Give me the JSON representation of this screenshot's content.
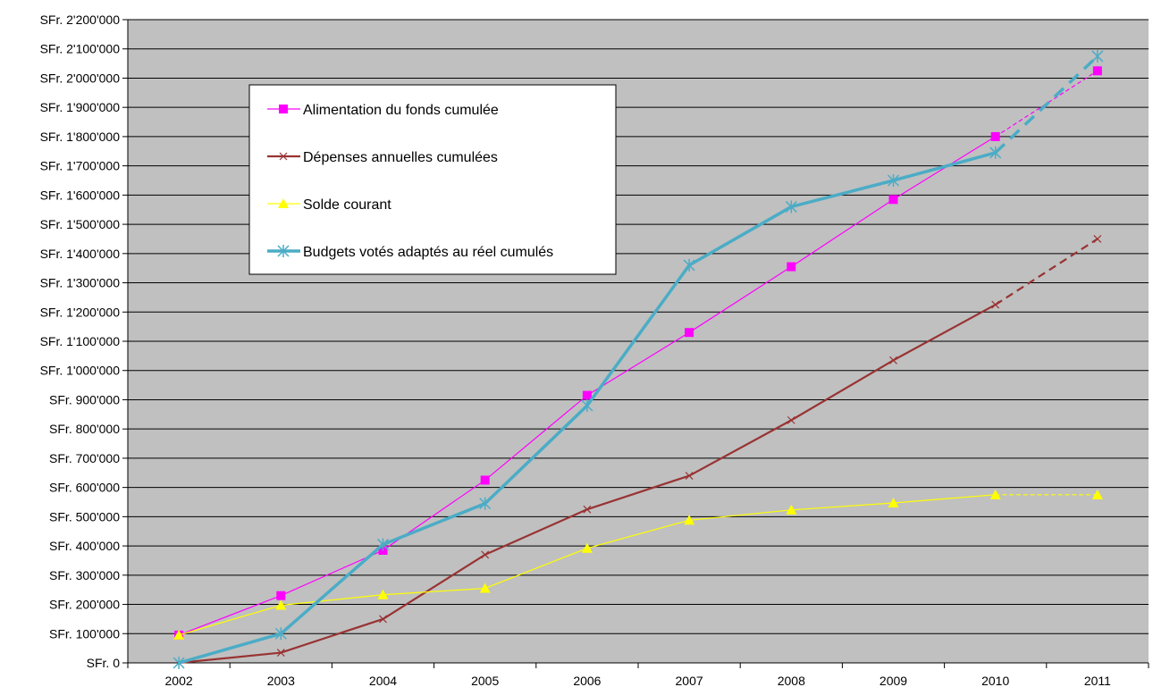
{
  "chart_data": {
    "type": "line",
    "title": "",
    "xlabel": "",
    "ylabel": "",
    "categories": [
      "2002",
      "2003",
      "2004",
      "2005",
      "2006",
      "2007",
      "2008",
      "2009",
      "2010",
      "2011"
    ],
    "ylim": [
      0,
      2200000
    ],
    "ytick_step": 100000,
    "y_tick_labels": [
      "SFr. 0",
      "SFr. 100'000",
      "SFr. 200'000",
      "SFr. 300'000",
      "SFr. 400'000",
      "SFr. 500'000",
      "SFr. 600'000",
      "SFr. 700'000",
      "SFr. 800'000",
      "SFr. 900'000",
      "SFr. 1'000'000",
      "SFr. 1'100'000",
      "SFr. 1'200'000",
      "SFr. 1'300'000",
      "SFr. 1'400'000",
      "SFr. 1'500'000",
      "SFr. 1'600'000",
      "SFr. 1'700'000",
      "SFr. 1'800'000",
      "SFr. 1'900'000",
      "SFr. 2'000'000",
      "SFr. 2'100'000",
      "SFr. 2'200'000"
    ],
    "grid": true,
    "plot_background": "#c0c0c0",
    "legend_position": "top-left",
    "projected_from_index": 8,
    "series": [
      {
        "name": "Alimentation du fonds cumulée",
        "color": "#ff00ff",
        "marker": "square",
        "line_style": "thin",
        "values": [
          95000,
          230000,
          385000,
          625000,
          915000,
          1130000,
          1355000,
          1585000,
          1800000,
          2025000
        ]
      },
      {
        "name": "Dépenses annuelles cumulées",
        "color": "#993333",
        "marker": "x",
        "line_style": "medium",
        "values": [
          0,
          35000,
          150000,
          370000,
          525000,
          640000,
          830000,
          1035000,
          1225000,
          1450000
        ]
      },
      {
        "name": "Solde courant",
        "color": "#ffff00",
        "marker": "triangle",
        "line_style": "thin",
        "values": [
          95000,
          197000,
          233000,
          255000,
          392000,
          488000,
          523000,
          547000,
          575000,
          575000
        ]
      },
      {
        "name": "Budgets votés adaptés au réel cumulés",
        "color": "#4bacc6",
        "marker": "asterisk",
        "line_style": "thick",
        "values": [
          0,
          100000,
          405000,
          545000,
          880000,
          1360000,
          1560000,
          1650000,
          1745000,
          2075000
        ]
      }
    ]
  }
}
